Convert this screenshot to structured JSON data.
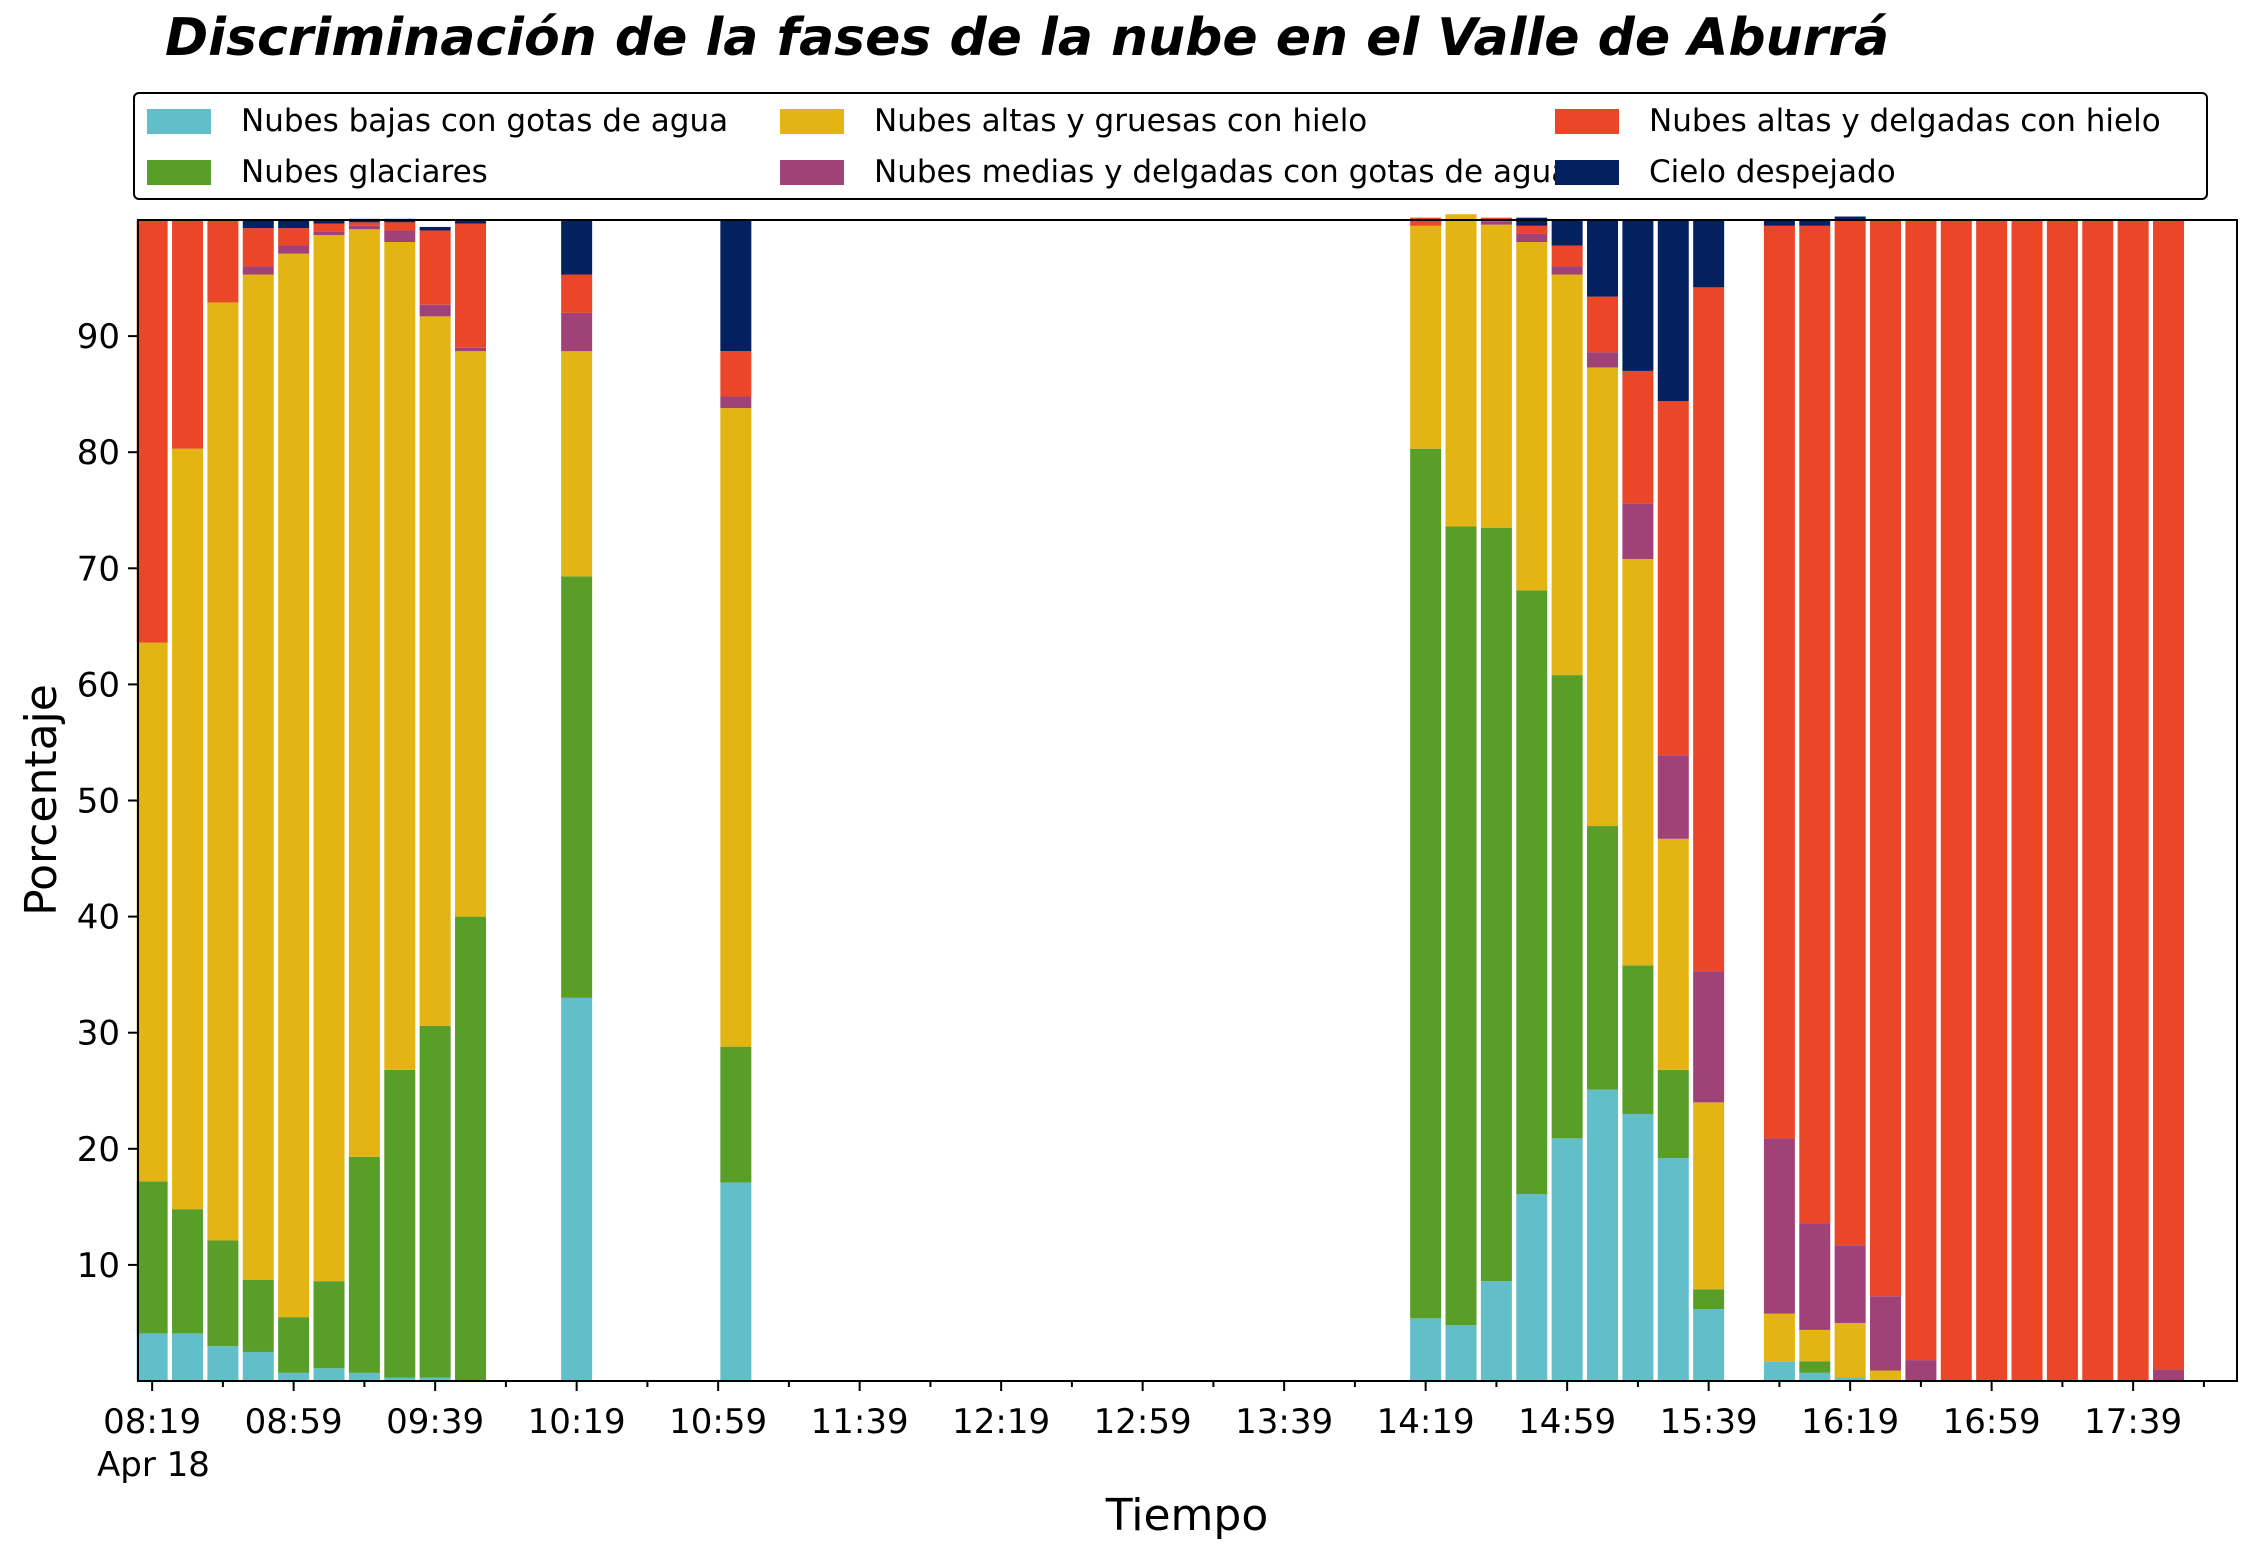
{
  "chart_data": {
    "type": "bar",
    "stacked": true,
    "title": "Discriminación de la fases de la nube en el Valle de Aburrá",
    "xlabel": "Tiempo",
    "ylabel": "Porcentaje",
    "date_label": "Apr 18",
    "ylim": [
      0,
      100
    ],
    "yticks": [
      "10",
      "20",
      "30",
      "40",
      "50",
      "60",
      "70",
      "80",
      "90"
    ],
    "xtick_labels": [
      "08:19",
      "08:59",
      "09:39",
      "10:19",
      "10:59",
      "11:39",
      "12:19",
      "12:59",
      "13:39",
      "14:19",
      "14:59",
      "15:39",
      "16:19",
      "16:59",
      "17:39"
    ],
    "legend_position": "top",
    "grid": false,
    "categories": [
      "08:19",
      "08:29",
      "08:39",
      "08:49",
      "08:59",
      "09:09",
      "09:19",
      "09:29",
      "09:39",
      "09:49",
      "10:19",
      "11:04",
      "14:19",
      "14:29",
      "14:39",
      "14:49",
      "14:59",
      "15:09",
      "15:19",
      "15:29",
      "15:39",
      "15:59",
      "16:09",
      "16:19",
      "16:29",
      "16:39",
      "16:49",
      "16:59",
      "17:09",
      "17:19",
      "17:29",
      "17:39",
      "17:49"
    ],
    "series": [
      {
        "name": "Nubes bajas con gotas de agua",
        "color": "#62BFC9",
        "values": [
          4.1,
          4.1,
          3.0,
          2.5,
          0.7,
          1.1,
          0.7,
          0.3,
          0.3,
          0,
          33.0,
          17.1,
          5.4,
          4.8,
          8.6,
          16.1,
          20.9,
          25.1,
          23.0,
          19.2,
          6.2,
          1.7,
          0.7,
          0.3,
          0,
          0,
          0,
          0,
          0,
          0,
          0,
          0,
          0
        ]
      },
      {
        "name": "Nubes glaciares",
        "color": "#5A9E2A",
        "values": [
          13.1,
          10.7,
          9.1,
          6.2,
          4.8,
          7.5,
          18.6,
          26.5,
          30.3,
          40.0,
          36.3,
          11.7,
          74.9,
          68.8,
          64.9,
          52.0,
          39.9,
          22.7,
          12.8,
          7.6,
          1.7,
          0,
          1.0,
          0,
          0,
          0,
          0,
          0,
          0,
          0,
          0,
          0,
          0
        ]
      },
      {
        "name": "Nubes altas y gruesas con hielo",
        "color": "#E3B514",
        "values": [
          46.4,
          65.5,
          80.8,
          86.6,
          91.6,
          90.1,
          79.9,
          71.3,
          61.1,
          48.7,
          19.4,
          55.0,
          19.2,
          26.9,
          26.1,
          30.0,
          34.5,
          39.5,
          35.0,
          19.9,
          16.1,
          4.1,
          2.7,
          4.7,
          0.9,
          0,
          0,
          0,
          0,
          0,
          0,
          0,
          0
        ]
      },
      {
        "name": "Nubes medias y delgadas con gotas de agua",
        "color": "#A04178",
        "values": [
          0,
          0,
          0,
          0.7,
          0.7,
          0.3,
          0.3,
          1.0,
          1.0,
          0.3,
          3.3,
          1.0,
          0,
          0,
          0.3,
          0.7,
          0.7,
          1.3,
          4.8,
          7.2,
          11.3,
          15.1,
          9.2,
          6.7,
          6.4,
          1.8,
          0,
          0,
          0,
          0,
          0,
          0,
          1.0
        ]
      },
      {
        "name": "Nubes altas y delgadas con hielo",
        "color": "#EB4628",
        "values": [
          36.4,
          19.7,
          7.1,
          3.3,
          1.5,
          0.7,
          0.3,
          0.7,
          6.4,
          10.7,
          3.3,
          3.9,
          0.7,
          0,
          0.3,
          0.7,
          1.8,
          4.8,
          11.4,
          30.5,
          58.9,
          78.6,
          85.9,
          88.3,
          92.7,
          98.2,
          100,
          100,
          100,
          100,
          100,
          100,
          99.0
        ]
      },
      {
        "name": "Cielo despejado",
        "color": "#03205F",
        "values": [
          0,
          0,
          0,
          0.7,
          0.7,
          0.3,
          0.3,
          0.3,
          0.3,
          0.3,
          4.7,
          11.3,
          0,
          0,
          0,
          0.7,
          2.2,
          6.6,
          13.0,
          15.6,
          5.8,
          0.5,
          0.5,
          0.3,
          0,
          0,
          0,
          0,
          0,
          0,
          0,
          0,
          0
        ]
      }
    ]
  }
}
